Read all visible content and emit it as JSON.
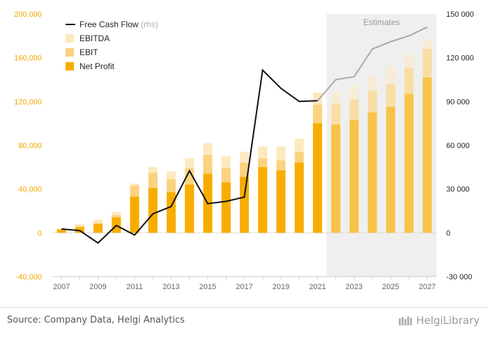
{
  "chart_data": {
    "type": "bar",
    "categories": [
      "2007",
      "2008",
      "2009",
      "2010",
      "2011",
      "2012",
      "2013",
      "2014",
      "2015",
      "2016",
      "2017",
      "2018",
      "2019",
      "2020",
      "2021",
      "2022",
      "2023",
      "2024",
      "2025",
      "2026",
      "2027"
    ],
    "x_tick_labels": [
      "2007",
      "2009",
      "2011",
      "2013",
      "2015",
      "2017",
      "2019",
      "2021",
      "2023",
      "2025",
      "2027"
    ],
    "estimates_from": "2022",
    "estimates_label": "Estimates",
    "series": [
      {
        "name": "EBITDA",
        "kind": "bar",
        "axis": "left",
        "color": "#fde9bf",
        "values": [
          4000,
          8000,
          12000,
          19000,
          45000,
          60000,
          56000,
          68000,
          82000,
          70000,
          74000,
          79000,
          79000,
          86000,
          128000,
          129000,
          135000,
          143000,
          152000,
          163000,
          176000
        ]
      },
      {
        "name": "EBIT",
        "kind": "bar",
        "axis": "left",
        "color": "#fbd27e",
        "values": [
          3000,
          6000,
          9000,
          16000,
          43000,
          55000,
          49000,
          59000,
          71000,
          59000,
          64000,
          68000,
          66000,
          74000,
          117000,
          118000,
          122000,
          130000,
          136000,
          151000,
          168000
        ]
      },
      {
        "name": "Net Profit",
        "kind": "bar",
        "axis": "left",
        "color": "#f7ad00",
        "values": [
          3000,
          5000,
          8000,
          14000,
          33000,
          41000,
          37000,
          44000,
          54000,
          46000,
          51000,
          60000,
          57000,
          64000,
          100000,
          99000,
          103000,
          110000,
          115000,
          127000,
          142000
        ]
      },
      {
        "name": "Free Cash Flow",
        "name_suffix": "(rhs)",
        "kind": "line",
        "axis": "right",
        "color": "#111111",
        "estimate_color": "#a8a8a8",
        "values": [
          2600,
          1500,
          -7000,
          5000,
          -1500,
          13000,
          18000,
          42500,
          20000,
          21500,
          24500,
          111500,
          99000,
          90000,
          90500,
          105000,
          107000,
          126000,
          131000,
          135000,
          141000
        ]
      }
    ],
    "left_axis": {
      "ylim": [
        -40000,
        200000
      ],
      "ticks": [
        "-40,000",
        "0",
        "40,000",
        "80,000",
        "120,000",
        "160,000",
        "200,000"
      ],
      "tick_values": [
        -40000,
        0,
        40000,
        80000,
        120000,
        160000,
        200000
      ],
      "color": "#f2a900"
    },
    "right_axis": {
      "ylim": [
        -30000,
        150000
      ],
      "ticks": [
        "-30 000",
        "0",
        "30 000",
        "60 000",
        "90 000",
        "120 000",
        "150 000"
      ],
      "tick_values": [
        -30000,
        0,
        30000,
        60000,
        90000,
        120000,
        150000
      ],
      "color": "#222222"
    },
    "legend": {
      "placement": "top-left"
    }
  },
  "footer": {
    "source": "Source: Company Data, Helgi Analytics",
    "brand": "HelgiLibrary"
  }
}
